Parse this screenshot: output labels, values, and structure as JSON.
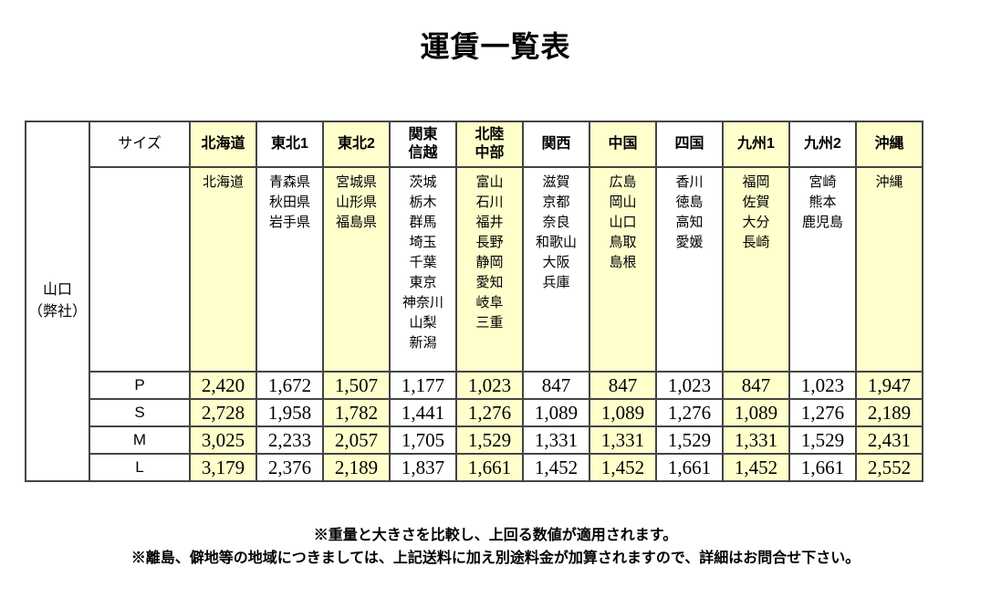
{
  "page": {
    "title": "運賃一覧表"
  },
  "colors": {
    "origin_green": "#CCFF33",
    "highlight_yellow": "#FFFFCC",
    "border_color": "#444444"
  },
  "table": {
    "origin_label": "山口\n（弊社）",
    "size_header": "サイズ",
    "columns": [
      {
        "label": "北海道",
        "prefectures": "北海道",
        "highlight": true
      },
      {
        "label": "東北1",
        "prefectures": "青森県\n秋田県\n岩手県",
        "highlight": false
      },
      {
        "label": "東北2",
        "prefectures": "宮城県\n山形県\n福島県",
        "highlight": true
      },
      {
        "label": "関東\n信越",
        "prefectures": "茨城\n栃木\n群馬\n埼玉\n千葉\n東京\n神奈川\n山梨\n新潟",
        "highlight": false
      },
      {
        "label": "北陸\n中部",
        "prefectures": "富山\n石川\n福井\n長野\n静岡\n愛知\n岐阜\n三重",
        "highlight": true
      },
      {
        "label": "関西",
        "prefectures": "滋賀\n京都\n奈良\n和歌山\n大阪\n兵庫",
        "highlight": false
      },
      {
        "label": "中国",
        "prefectures": "広島\n岡山\n山口\n鳥取\n島根",
        "highlight": true
      },
      {
        "label": "四国",
        "prefectures": "香川\n徳島\n高知\n愛媛",
        "highlight": false
      },
      {
        "label": "九州1",
        "prefectures": "福岡\n佐賀\n大分\n長崎",
        "highlight": true
      },
      {
        "label": "九州2",
        "prefectures": "宮崎\n熊本\n鹿児島",
        "highlight": false
      },
      {
        "label": "沖縄",
        "prefectures": "沖縄",
        "highlight": true
      }
    ],
    "rows": [
      {
        "size": "P",
        "values": [
          "2,420",
          "1,672",
          "1,507",
          "1,177",
          "1,023",
          "847",
          "847",
          "1,023",
          "847",
          "1,023",
          "1,947"
        ]
      },
      {
        "size": "S",
        "values": [
          "2,728",
          "1,958",
          "1,782",
          "1,441",
          "1,276",
          "1,089",
          "1,089",
          "1,276",
          "1,089",
          "1,276",
          "2,189"
        ]
      },
      {
        "size": "M",
        "values": [
          "3,025",
          "2,233",
          "2,057",
          "1,705",
          "1,529",
          "1,331",
          "1,331",
          "1,529",
          "1,331",
          "1,529",
          "2,431"
        ]
      },
      {
        "size": "L",
        "values": [
          "3,179",
          "2,376",
          "2,189",
          "1,837",
          "1,661",
          "1,452",
          "1,452",
          "1,661",
          "1,452",
          "1,661",
          "2,552"
        ]
      }
    ]
  },
  "footnotes": [
    "※重量と大きさを比較し、上回る数値が適用されます。",
    "※離島、僻地等の地域につきましては、上記送料に加え別途料金が加算されますので、詳細はお問合せ下さい。"
  ]
}
